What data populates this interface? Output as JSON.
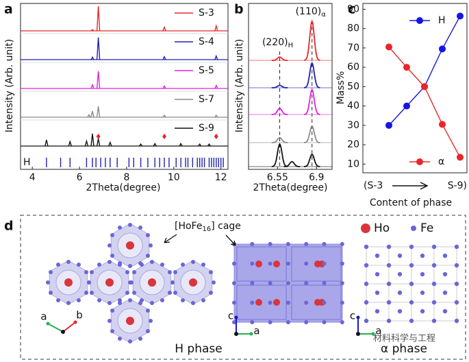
{
  "panel_labels": [
    "a",
    "b",
    "c",
    "d"
  ],
  "chart_data": [
    {
      "type": "xrd-peaks",
      "y_label": "Intensity (Arb. unit)",
      "x_label": "2Theta(degree)",
      "xlim": [
        3.5,
        12.3
      ],
      "xticks": [
        4,
        6,
        8,
        10,
        12
      ],
      "series": [
        {
          "name": "S-3",
          "color": "#e8262a",
          "x": [
            6.55,
            6.8,
            9.6,
            11.8
          ],
          "values": [
            5,
            100,
            15,
            20
          ]
        },
        {
          "name": "S-4",
          "color": "#1f1fb4",
          "x": [
            6.55,
            6.8,
            9.6,
            11.8
          ],
          "values": [
            10,
            90,
            12,
            15
          ]
        },
        {
          "name": "S-5",
          "color": "#e020e0",
          "x": [
            6.55,
            6.8,
            9.6,
            11.8
          ],
          "values": [
            15,
            70,
            10,
            12
          ]
        },
        {
          "name": "S-7",
          "color": "#8a8a8a",
          "x": [
            6.4,
            6.55,
            6.8,
            9.6,
            11.8
          ],
          "values": [
            10,
            25,
            45,
            8,
            8
          ]
        },
        {
          "name": "S-9",
          "color": "#111111",
          "x": [
            4.6,
            5.6,
            6.3,
            6.55,
            6.8,
            7.3,
            8.6,
            9.2,
            10.3,
            11.1,
            11.5
          ],
          "values": [
            25,
            18,
            20,
            50,
            30,
            15,
            8,
            10,
            10,
            8,
            8
          ]
        }
      ],
      "markers": {
        "color": "#e8262a",
        "x": [
          6.8,
          9.6,
          11.8
        ]
      },
      "reference": {
        "name": "H",
        "color": "#1f1fb4",
        "x": [
          4.6,
          5.2,
          5.6,
          6.3,
          6.55,
          6.7,
          6.9,
          7.1,
          7.3,
          7.6,
          8.1,
          8.3,
          8.6,
          8.9,
          9.2,
          9.4,
          9.6,
          9.8,
          10.1,
          10.3,
          10.5,
          10.6,
          10.8,
          11.0,
          11.1,
          11.2,
          11.3,
          11.5,
          11.6,
          11.7,
          11.8,
          11.9,
          12.0,
          12.1
        ]
      }
    },
    {
      "type": "xrd-profile",
      "y_label": "Intensity (Arb. unit)",
      "x_label": "2Theta(degree)",
      "xlim": [
        6.29,
        7.04
      ],
      "xticks": [
        6.55,
        6.9
      ],
      "annotations": [
        {
          "text": "(220)",
          "sub": "H",
          "x": 6.57
        },
        {
          "text": "(110)",
          "sub": "α",
          "x": 6.86
        }
      ],
      "series": [
        {
          "color": "#e8262a",
          "x": [
            6.57,
            6.86
          ],
          "values": [
            8,
            95
          ]
        },
        {
          "color": "#1f1fb4",
          "x": [
            6.57,
            6.86
          ],
          "values": [
            6,
            60
          ]
        },
        {
          "color": "#e020e0",
          "x": [
            6.57,
            6.86
          ],
          "values": [
            15,
            60
          ]
        },
        {
          "color": "#8a8a8a",
          "x": [
            6.57,
            6.86
          ],
          "values": [
            12,
            40
          ]
        },
        {
          "color": "#111111",
          "x": [
            6.57,
            6.68,
            6.86
          ],
          "values": [
            55,
            12,
            30
          ]
        }
      ]
    },
    {
      "type": "line",
      "y_label": "Mass%",
      "x_label": "Content of phase",
      "x_range_labels": [
        "(S-3",
        "S-9)"
      ],
      "categories": [
        null,
        null,
        null,
        null,
        null
      ],
      "ylim": [
        5.5,
        93
      ],
      "yticks": [
        10,
        20,
        30,
        40,
        50,
        60,
        70,
        80,
        90
      ],
      "series": [
        {
          "name": "H",
          "color": "#1515e6",
          "values": [
            30,
            40,
            50,
            69.5,
            86.5
          ]
        },
        {
          "name": "α",
          "color": "#e8262a",
          "values": [
            70.5,
            60,
            50,
            30.5,
            13.5
          ]
        }
      ]
    }
  ],
  "diagram": {
    "cage_label": {
      "text": "[HoFe",
      "sub": "16",
      "rest": "] cage"
    },
    "legend": [
      "Ho",
      "Fe"
    ],
    "phase_labels": [
      "H phase",
      "α phase"
    ],
    "axes_left": [
      "a",
      "b"
    ],
    "axes_mid": [
      "c",
      "a"
    ],
    "axes_right": [
      "c",
      "a"
    ],
    "watermark": "材料科学与工程"
  }
}
